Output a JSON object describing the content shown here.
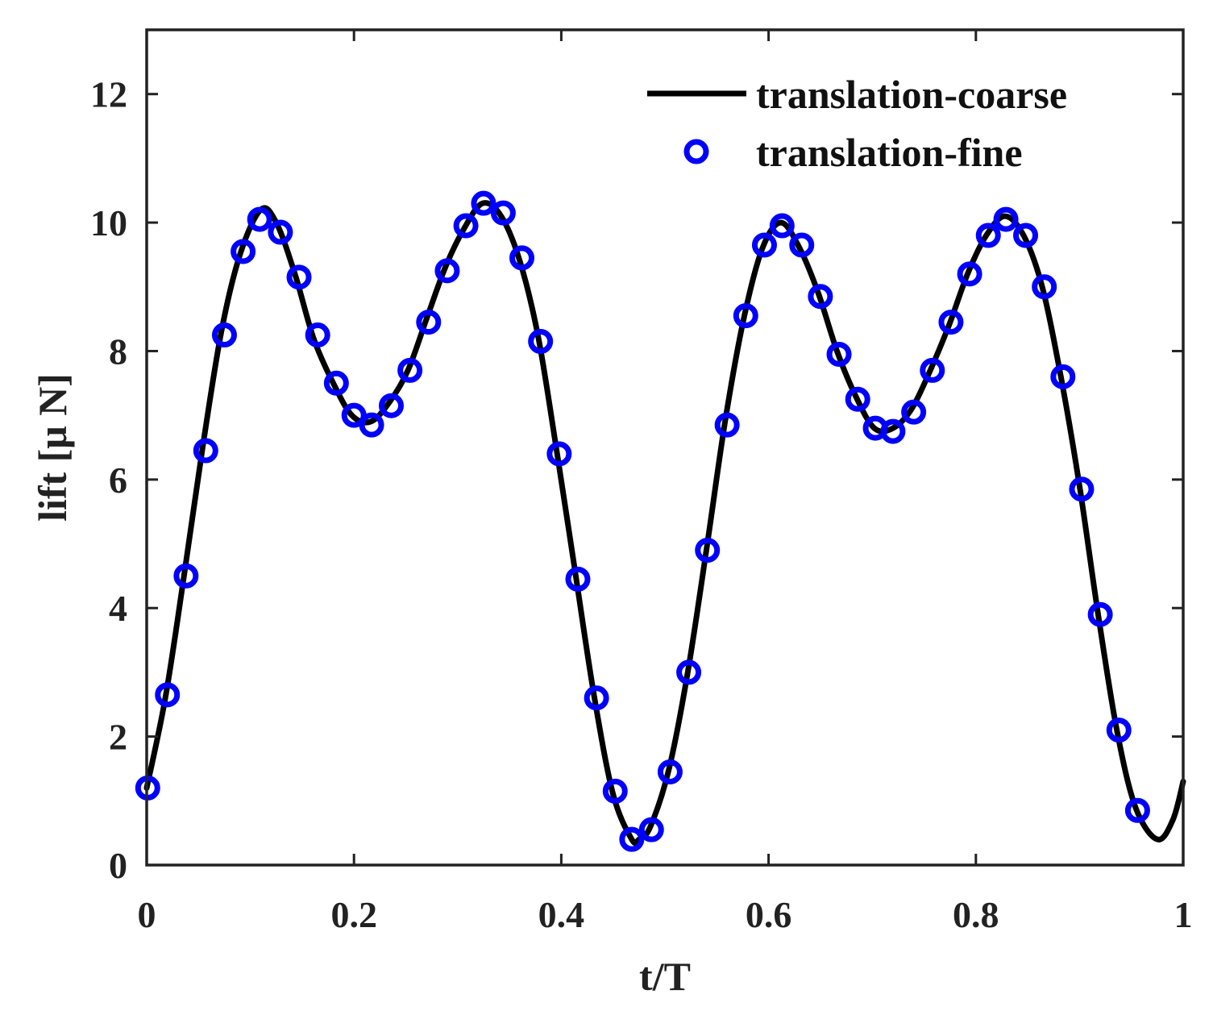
{
  "chart_data": {
    "type": "line",
    "title": "",
    "xlabel": "t/T",
    "ylabel": "lift [μ N]",
    "xlim": [
      0,
      1
    ],
    "ylim": [
      0,
      13
    ],
    "xticks": [
      0,
      0.2,
      0.4,
      0.6,
      0.8,
      1
    ],
    "xtick_labels": [
      "0",
      "0.2",
      "0.4",
      "0.6",
      "0.8",
      "1"
    ],
    "yticks": [
      0,
      2,
      4,
      6,
      8,
      10,
      12
    ],
    "ytick_labels": [
      "0",
      "2",
      "4",
      "6",
      "8",
      "10",
      "12"
    ],
    "grid": false,
    "legend_position": "top-right",
    "series": [
      {
        "name": "translation-coarse",
        "style": "line",
        "color": "#000000",
        "x": [
          0,
          0.018,
          0.036,
          0.054,
          0.072,
          0.09,
          0.11,
          0.125,
          0.143,
          0.161,
          0.18,
          0.198,
          0.216,
          0.234,
          0.252,
          0.27,
          0.288,
          0.306,
          0.324,
          0.342,
          0.36,
          0.378,
          0.396,
          0.414,
          0.432,
          0.45,
          0.468,
          0.475,
          0.486,
          0.504,
          0.522,
          0.54,
          0.558,
          0.576,
          0.594,
          0.612,
          0.63,
          0.648,
          0.666,
          0.684,
          0.702,
          0.72,
          0.738,
          0.756,
          0.774,
          0.792,
          0.81,
          0.828,
          0.846,
          0.864,
          0.882,
          0.9,
          0.918,
          0.936,
          0.954,
          0.975,
          0.99,
          1.0
        ],
        "y": [
          1.2,
          2.6,
          4.5,
          6.5,
          8.3,
          9.5,
          10.2,
          10.0,
          9.2,
          8.2,
          7.5,
          7.0,
          6.9,
          7.2,
          7.7,
          8.5,
          9.3,
          9.9,
          10.3,
          10.1,
          9.4,
          8.2,
          6.4,
          4.5,
          2.6,
          1.1,
          0.4,
          0.4,
          0.6,
          1.5,
          3.0,
          4.9,
          6.9,
          8.5,
          9.6,
          10.0,
          9.6,
          8.9,
          8.0,
          7.3,
          6.8,
          6.8,
          7.1,
          7.7,
          8.4,
          9.2,
          9.8,
          10.1,
          9.8,
          9.0,
          7.6,
          5.9,
          3.9,
          2.1,
          0.9,
          0.4,
          0.7,
          1.3
        ]
      },
      {
        "name": "translation-fine",
        "style": "markers",
        "marker": "circle",
        "color": "#0000ff",
        "x": [
          0.001,
          0.02,
          0.038,
          0.057,
          0.075,
          0.093,
          0.109,
          0.129,
          0.147,
          0.165,
          0.183,
          0.2,
          0.217,
          0.236,
          0.254,
          0.272,
          0.29,
          0.308,
          0.325,
          0.344,
          0.362,
          0.38,
          0.398,
          0.416,
          0.434,
          0.452,
          0.468,
          0.487,
          0.505,
          0.523,
          0.541,
          0.56,
          0.578,
          0.596,
          0.613,
          0.632,
          0.65,
          0.668,
          0.686,
          0.703,
          0.72,
          0.74,
          0.758,
          0.776,
          0.794,
          0.812,
          0.829,
          0.848,
          0.866,
          0.884,
          0.902,
          0.92,
          0.938,
          0.956
        ],
        "y": [
          1.2,
          2.65,
          4.5,
          6.45,
          8.25,
          9.55,
          10.05,
          9.85,
          9.15,
          8.25,
          7.5,
          7.0,
          6.85,
          7.15,
          7.7,
          8.45,
          9.25,
          9.95,
          10.3,
          10.15,
          9.45,
          8.15,
          6.4,
          4.45,
          2.6,
          1.15,
          0.4,
          0.55,
          1.45,
          3.0,
          4.9,
          6.85,
          8.55,
          9.65,
          9.95,
          9.65,
          8.85,
          7.95,
          7.25,
          6.8,
          6.75,
          7.05,
          7.7,
          8.45,
          9.2,
          9.8,
          10.05,
          9.8,
          9.0,
          7.6,
          5.85,
          3.9,
          2.1,
          0.85
        ]
      }
    ]
  }
}
